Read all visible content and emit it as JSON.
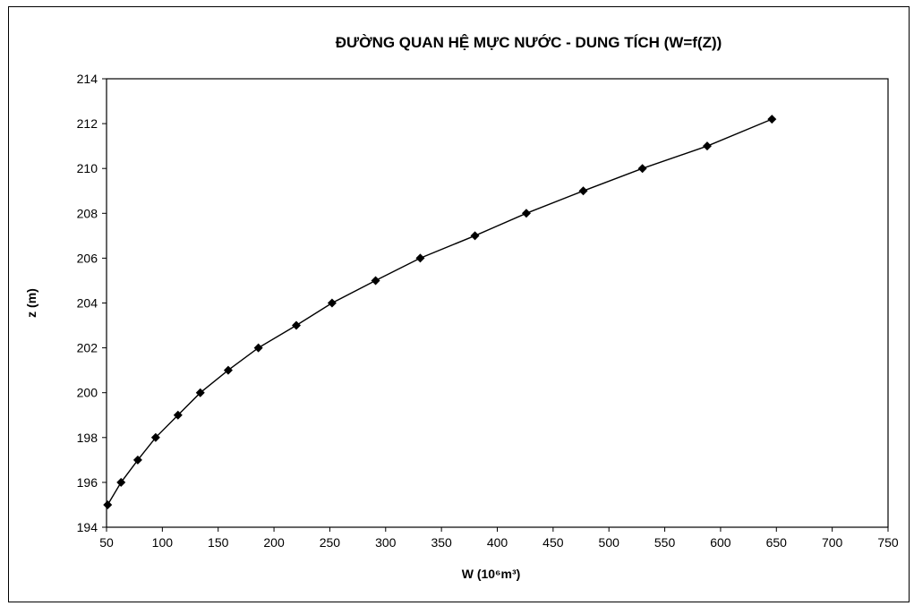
{
  "chart_data": {
    "type": "line",
    "title": "ĐƯỜNG QUAN HỆ MỰC NƯỚC - DUNG TÍCH (W=f(Z))",
    "xlabel": "W (10⁶m³)",
    "ylabel": "z (m)",
    "xlim": [
      50,
      750
    ],
    "ylim": [
      194,
      214
    ],
    "x_ticks": [
      "50",
      "100",
      "150",
      "200",
      "250",
      "300",
      "350",
      "400",
      "450",
      "500",
      "550",
      "600",
      "650",
      "700",
      "750"
    ],
    "y_ticks": [
      "194",
      "196",
      "198",
      "200",
      "202",
      "204",
      "206",
      "208",
      "210",
      "212",
      "214"
    ],
    "grid": false,
    "legend": "none",
    "marker": "diamond",
    "line_color": "#000000",
    "series": [
      {
        "x": [
          51,
          63,
          78,
          94,
          114,
          134,
          159,
          186,
          220,
          252,
          291,
          331,
          380,
          426,
          477,
          530,
          588,
          646
        ],
        "y": [
          195,
          196,
          197,
          198,
          199,
          200,
          201,
          202,
          203,
          204,
          205,
          206,
          207,
          208,
          209,
          210,
          211,
          212.2
        ]
      }
    ]
  }
}
